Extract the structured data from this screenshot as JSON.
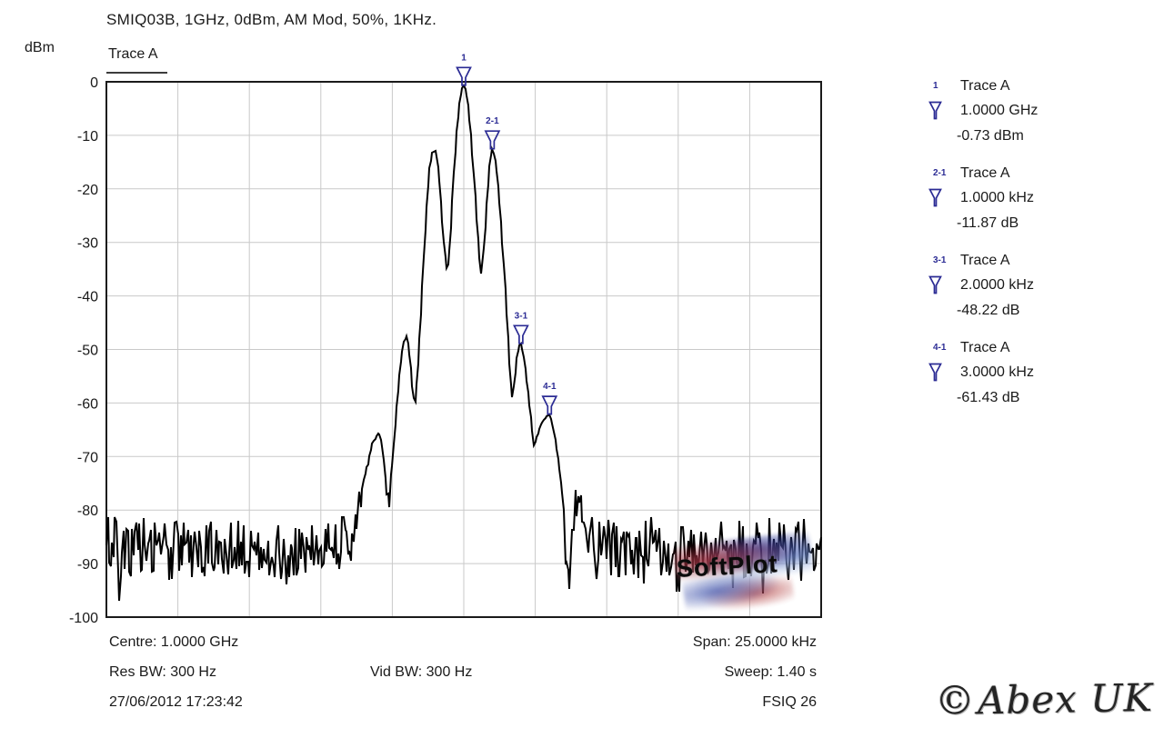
{
  "header": {
    "title": "SMIQ03B, 1GHz, 0dBm, AM Mod, 50%, 1KHz.",
    "trace_label": "Trace A",
    "y_unit": "dBm"
  },
  "chart_data": {
    "type": "line",
    "title": "SMIQ03B, 1GHz, 0dBm, AM Mod, 50%, 1KHz.",
    "trace_name": "Trace A",
    "ylabel": "dBm",
    "ylim": [
      -100,
      0
    ],
    "ytick_step": 10,
    "x_center_label": "1.0000 GHz",
    "x_span_khz": 25,
    "x_divisions": 10,
    "grid": true,
    "legend_position": "right",
    "markers": [
      {
        "id": "1",
        "x_khz": 0.0,
        "level_dbm": -0.73,
        "freq_label": "1.0000 GHz",
        "level_label": "-0.73 dBm"
      },
      {
        "id": "2-1",
        "x_khz": 1.0,
        "level_dbm": -12.6,
        "freq_label": "1.0000 kHz",
        "level_label": "-11.87 dB"
      },
      {
        "id": "3-1",
        "x_khz": 2.0,
        "level_dbm": -48.95,
        "freq_label": "2.0000 kHz",
        "level_label": "-48.22 dB"
      },
      {
        "id": "4-1",
        "x_khz": 3.0,
        "level_dbm": -62.16,
        "freq_label": "3.0000 kHz",
        "level_label": "-61.43 dB"
      }
    ],
    "trace_envelope_khz_dbm": [
      [
        -12.5,
        -86
      ],
      [
        -11.8,
        -88
      ],
      [
        -11.1,
        -86.3
      ],
      [
        -10.4,
        -88
      ],
      [
        -9.7,
        -86.6
      ],
      [
        -9.0,
        -88.2
      ],
      [
        -8.3,
        -86.4
      ],
      [
        -7.6,
        -88
      ],
      [
        -6.9,
        -86.6
      ],
      [
        -6.2,
        -88.3
      ],
      [
        -5.5,
        -86.5
      ],
      [
        -4.9,
        -88
      ],
      [
        -4.4,
        -86.8
      ],
      [
        -3.95,
        -85
      ],
      [
        -3.7,
        -80
      ],
      [
        -3.45,
        -73.5
      ],
      [
        -3.2,
        -67.6
      ],
      [
        -2.97,
        -65.5
      ],
      [
        -2.85,
        -68
      ],
      [
        -2.74,
        -73.5
      ],
      [
        -2.64,
        -80.5
      ],
      [
        -2.52,
        -73
      ],
      [
        -2.38,
        -62.5
      ],
      [
        -2.22,
        -53
      ],
      [
        -2.1,
        -48.5
      ],
      [
        -2.0,
        -47.6
      ],
      [
        -1.93,
        -49.3
      ],
      [
        -1.85,
        -53.5
      ],
      [
        -1.77,
        -58.8
      ],
      [
        -1.7,
        -59.8
      ],
      [
        -1.62,
        -54.5
      ],
      [
        -1.5,
        -43.5
      ],
      [
        -1.36,
        -28.5
      ],
      [
        -1.22,
        -16.8
      ],
      [
        -1.1,
        -13.2
      ],
      [
        -1.0,
        -12.9
      ],
      [
        -0.93,
        -14.3
      ],
      [
        -0.85,
        -18.5
      ],
      [
        -0.76,
        -25.5
      ],
      [
        -0.67,
        -32
      ],
      [
        -0.59,
        -35.3
      ],
      [
        -0.52,
        -33.2
      ],
      [
        -0.44,
        -26.5
      ],
      [
        -0.35,
        -17
      ],
      [
        -0.26,
        -9.8
      ],
      [
        -0.16,
        -4.4
      ],
      [
        -0.07,
        -1.3
      ],
      [
        0.0,
        -0.73
      ],
      [
        0.08,
        -1.7
      ],
      [
        0.16,
        -4.8
      ],
      [
        0.26,
        -10.5
      ],
      [
        0.36,
        -18
      ],
      [
        0.46,
        -26.5
      ],
      [
        0.54,
        -32.3
      ],
      [
        0.6,
        -35.8
      ],
      [
        0.66,
        -34
      ],
      [
        0.74,
        -28
      ],
      [
        0.83,
        -20.5
      ],
      [
        0.92,
        -14.4
      ],
      [
        1.0,
        -12.6
      ],
      [
        1.07,
        -13.7
      ],
      [
        1.16,
        -17
      ],
      [
        1.28,
        -24.5
      ],
      [
        1.41,
        -35
      ],
      [
        1.53,
        -46
      ],
      [
        1.62,
        -54.5
      ],
      [
        1.69,
        -59.4
      ],
      [
        1.76,
        -56.5
      ],
      [
        1.86,
        -51
      ],
      [
        1.95,
        -49.2
      ],
      [
        2.0,
        -48.9
      ],
      [
        2.08,
        -50.5
      ],
      [
        2.17,
        -54.5
      ],
      [
        2.28,
        -59.5
      ],
      [
        2.38,
        -64
      ],
      [
        2.45,
        -67.9
      ],
      [
        2.56,
        -66.3
      ],
      [
        2.7,
        -64
      ],
      [
        2.86,
        -62.7
      ],
      [
        3.0,
        -62.2
      ],
      [
        3.1,
        -63.8
      ],
      [
        3.22,
        -67.5
      ],
      [
        3.35,
        -72.5
      ],
      [
        3.47,
        -78
      ],
      [
        3.56,
        -86
      ],
      [
        3.64,
        -91
      ],
      [
        3.74,
        -86
      ],
      [
        3.88,
        -79
      ],
      [
        4.0,
        -80.5
      ],
      [
        4.14,
        -78.8
      ],
      [
        4.3,
        -82.5
      ],
      [
        4.5,
        -86.5
      ],
      [
        4.8,
        -88
      ],
      [
        5.3,
        -86.6
      ],
      [
        5.9,
        -88.2
      ],
      [
        6.5,
        -86.5
      ],
      [
        7.1,
        -88.3
      ],
      [
        7.8,
        -86.6
      ],
      [
        8.5,
        -88
      ],
      [
        9.2,
        -86.5
      ],
      [
        9.9,
        -88.2
      ],
      [
        10.6,
        -86.6
      ],
      [
        11.2,
        -88
      ],
      [
        11.8,
        -85.8
      ],
      [
        12.5,
        -86.8
      ]
    ],
    "noise": {
      "floor_mean_dbm": -87.5,
      "jitter_db": 5.6,
      "spike_extra_db": 4.5,
      "spike_prob": 0.06,
      "attach_threshold_dbm": -70,
      "attach_range_db": 16,
      "step_khz": 0.05,
      "seed": 1723,
      "min_dbm": -97
    }
  },
  "legend": {
    "entries": [
      {
        "id": "1",
        "trace": "Trace A",
        "freq": "1.0000 GHz",
        "level": "-0.73 dBm"
      },
      {
        "id": "2-1",
        "trace": "Trace A",
        "freq": "1.0000 kHz",
        "level": "-11.87 dB"
      },
      {
        "id": "3-1",
        "trace": "Trace A",
        "freq": "2.0000 kHz",
        "level": "-48.22 dB"
      },
      {
        "id": "4-1",
        "trace": "Trace A",
        "freq": "3.0000 kHz",
        "level": "-61.43 dB"
      }
    ]
  },
  "footer": {
    "centre": "Centre: 1.0000 GHz",
    "span": "Span: 25.0000 kHz",
    "res_bw": "Res BW: 300 Hz",
    "vid_bw": "Vid BW: 300 Hz",
    "sweep": "Sweep: 1.40 s",
    "datetime": "27/06/2012 17:23:42",
    "instrument": "FSIQ 26"
  },
  "watermark": {
    "text": "SoftPlot"
  },
  "branding": {
    "copyright": "©",
    "text": "Abex UK"
  },
  "colors": {
    "marker": "#2b2b94",
    "trace": "#000000",
    "grid": "#c9c9c9",
    "border": "#1a1a1a",
    "text": "#1a1a1a"
  }
}
